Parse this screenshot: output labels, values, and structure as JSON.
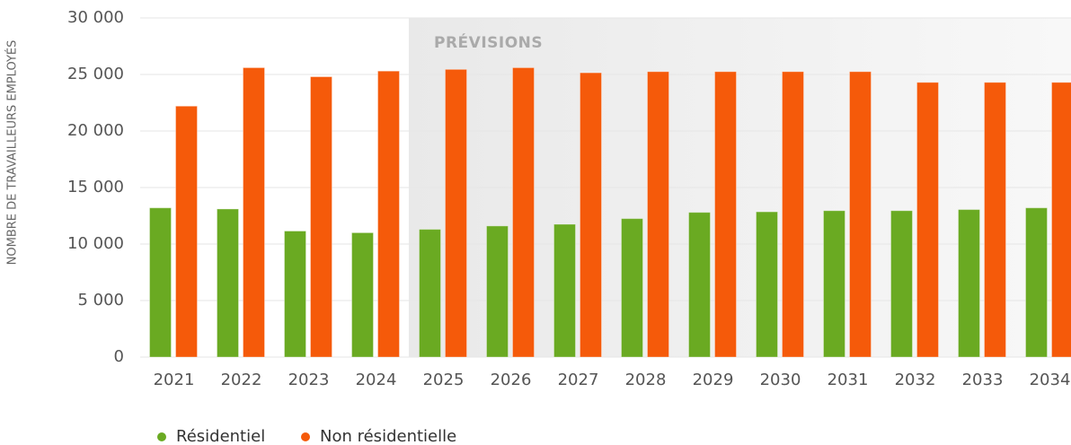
{
  "chart_data": {
    "type": "bar",
    "y_label": "NOMBRE DE TRAVAILLEURS EMPLOYÉS",
    "annotation": {
      "text": "PRÉVISIONS",
      "category": "2025"
    },
    "categories": [
      "2021",
      "2022",
      "2023",
      "2024",
      "2025",
      "2026",
      "2027",
      "2028",
      "2029",
      "2030",
      "2031",
      "2032",
      "2033",
      "2034"
    ],
    "series": [
      {
        "name": "Résidentiel",
        "color": "#6aaa22",
        "values": [
          13200,
          13100,
          11150,
          11000,
          11300,
          11600,
          11750,
          12250,
          12800,
          12850,
          12950,
          12950,
          13050,
          13200
        ]
      },
      {
        "name": "Non résidentielle",
        "color": "#f55a0a",
        "values": [
          22200,
          25600,
          24800,
          25300,
          25450,
          25600,
          25150,
          25250,
          25250,
          25250,
          25250,
          24300,
          24300,
          24300
        ]
      }
    ],
    "ylim": [
      0,
      30000
    ],
    "yticks": [
      0,
      {
        "value": 5000,
        "label": "5 000"
      },
      {
        "value": 10000,
        "label": "10 000"
      },
      {
        "value": 15000,
        "label": "15 000"
      },
      {
        "value": 20000,
        "label": "20 000"
      },
      {
        "value": 25000,
        "label": "25 000"
      },
      {
        "value": 30000,
        "label": "30 000"
      }
    ],
    "grid": true
  }
}
